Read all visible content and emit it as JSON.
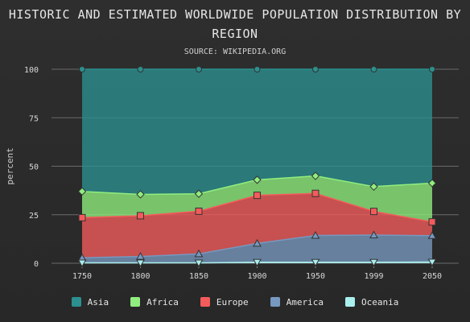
{
  "chart_data": {
    "type": "area",
    "stacking": "percent",
    "title": "HISTORIC AND ESTIMATED WORLDWIDE POPULATION DISTRIBUTION BY REGION",
    "subtitle": "SOURCE: WIKIPEDIA.ORG",
    "ylabel": "percent",
    "xlabel": "",
    "ylim": [
      0,
      100
    ],
    "yticks": [
      "0",
      "25",
      "50",
      "75",
      "100"
    ],
    "categories": [
      "1750",
      "1800",
      "1850",
      "1900",
      "1950",
      "1999",
      "2050"
    ],
    "grid": true,
    "legend_position": "bottom",
    "series": [
      {
        "name": "Asia",
        "color": "#2b908f",
        "marker": "circle",
        "cumulative_top": [
          100,
          100,
          100,
          100,
          100,
          100,
          100
        ]
      },
      {
        "name": "Africa",
        "color": "#90ee7e",
        "marker": "diamond",
        "cumulative_top": [
          37,
          35.5,
          35.8,
          43,
          45,
          39.5,
          41.3
        ]
      },
      {
        "name": "Europe",
        "color": "#f45b5b",
        "marker": "square",
        "cumulative_top": [
          23.5,
          24.5,
          26.8,
          35,
          36,
          26.7,
          21.3
        ]
      },
      {
        "name": "America",
        "color": "#7798bf",
        "marker": "triangle",
        "cumulative_top": [
          2.8,
          3.5,
          4.8,
          10.2,
          14.3,
          14.5,
          14.2
        ]
      },
      {
        "name": "Oceania",
        "color": "#aaeeee",
        "marker": "triangle-down",
        "cumulative_top": [
          0.2,
          0.2,
          0.2,
          0.5,
          0.5,
          0.5,
          0.6
        ]
      }
    ]
  }
}
